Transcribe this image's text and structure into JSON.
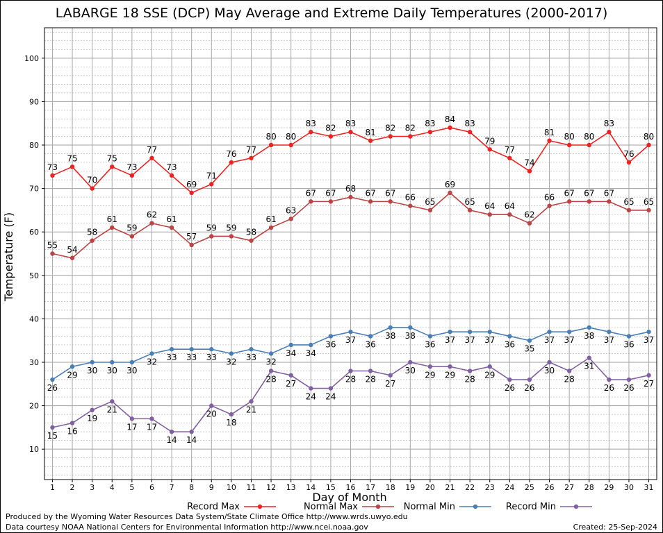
{
  "title": "LABARGE 18 SSE (DCP) May Average and Extreme Daily Temperatures (2000-2017)",
  "credits": {
    "produced_by": "Produced by the Wyoming Water Resources Data System/State Climate Office http://www.wrds.uwyo.edu",
    "courtesy": "Data courtesy NOAA National Centers for Environmental Information http://www.ncei.noaa.gov",
    "created": "Created:  25-Sep-2024"
  },
  "chart_data": {
    "type": "line",
    "title": "LABARGE 18 SSE (DCP) May Average and Extreme Daily Temperatures (2000-2017)",
    "xlabel": "Day of Month",
    "ylabel": "Temperature (F)",
    "x": [
      1,
      2,
      3,
      4,
      5,
      6,
      7,
      8,
      9,
      10,
      11,
      12,
      13,
      14,
      15,
      16,
      17,
      18,
      19,
      20,
      21,
      22,
      23,
      24,
      25,
      26,
      27,
      28,
      29,
      30,
      31
    ],
    "xlim": [
      0.6,
      31.4
    ],
    "ylim": [
      3,
      107
    ],
    "yticks": [
      10,
      20,
      30,
      40,
      50,
      60,
      70,
      80,
      90,
      100
    ],
    "grid": true,
    "legend": "bottom",
    "series": [
      {
        "name": "Record Max",
        "color": "#ee2222",
        "values": [
          73,
          75,
          70,
          75,
          73,
          77,
          73,
          69,
          71,
          76,
          77,
          80,
          80,
          83,
          82,
          83,
          81,
          82,
          82,
          83,
          84,
          83,
          79,
          77,
          74,
          81,
          80,
          80,
          83,
          76,
          80
        ]
      },
      {
        "name": "Normal Max",
        "color": "#bb4444",
        "values": [
          55,
          54,
          58,
          61,
          59,
          62,
          61,
          57,
          59,
          59,
          58,
          61,
          63,
          67,
          67,
          68,
          67,
          67,
          66,
          65,
          69,
          65,
          64,
          64,
          62,
          66,
          67,
          67,
          67,
          65,
          65
        ]
      },
      {
        "name": "Normal Min",
        "color": "#4a7fb5",
        "values": [
          26,
          29,
          30,
          30,
          30,
          32,
          33,
          33,
          33,
          32,
          33,
          32,
          34,
          34,
          36,
          37,
          36,
          38,
          38,
          36,
          37,
          37,
          37,
          36,
          35,
          37,
          37,
          38,
          37,
          36,
          37
        ]
      },
      {
        "name": "Record Min",
        "color": "#8060a0",
        "values": [
          15,
          16,
          19,
          21,
          17,
          17,
          14,
          14,
          20,
          18,
          21,
          28,
          27,
          24,
          24,
          28,
          28,
          27,
          30,
          29,
          29,
          28,
          29,
          26,
          26,
          30,
          28,
          31,
          26,
          26,
          27
        ]
      }
    ]
  }
}
